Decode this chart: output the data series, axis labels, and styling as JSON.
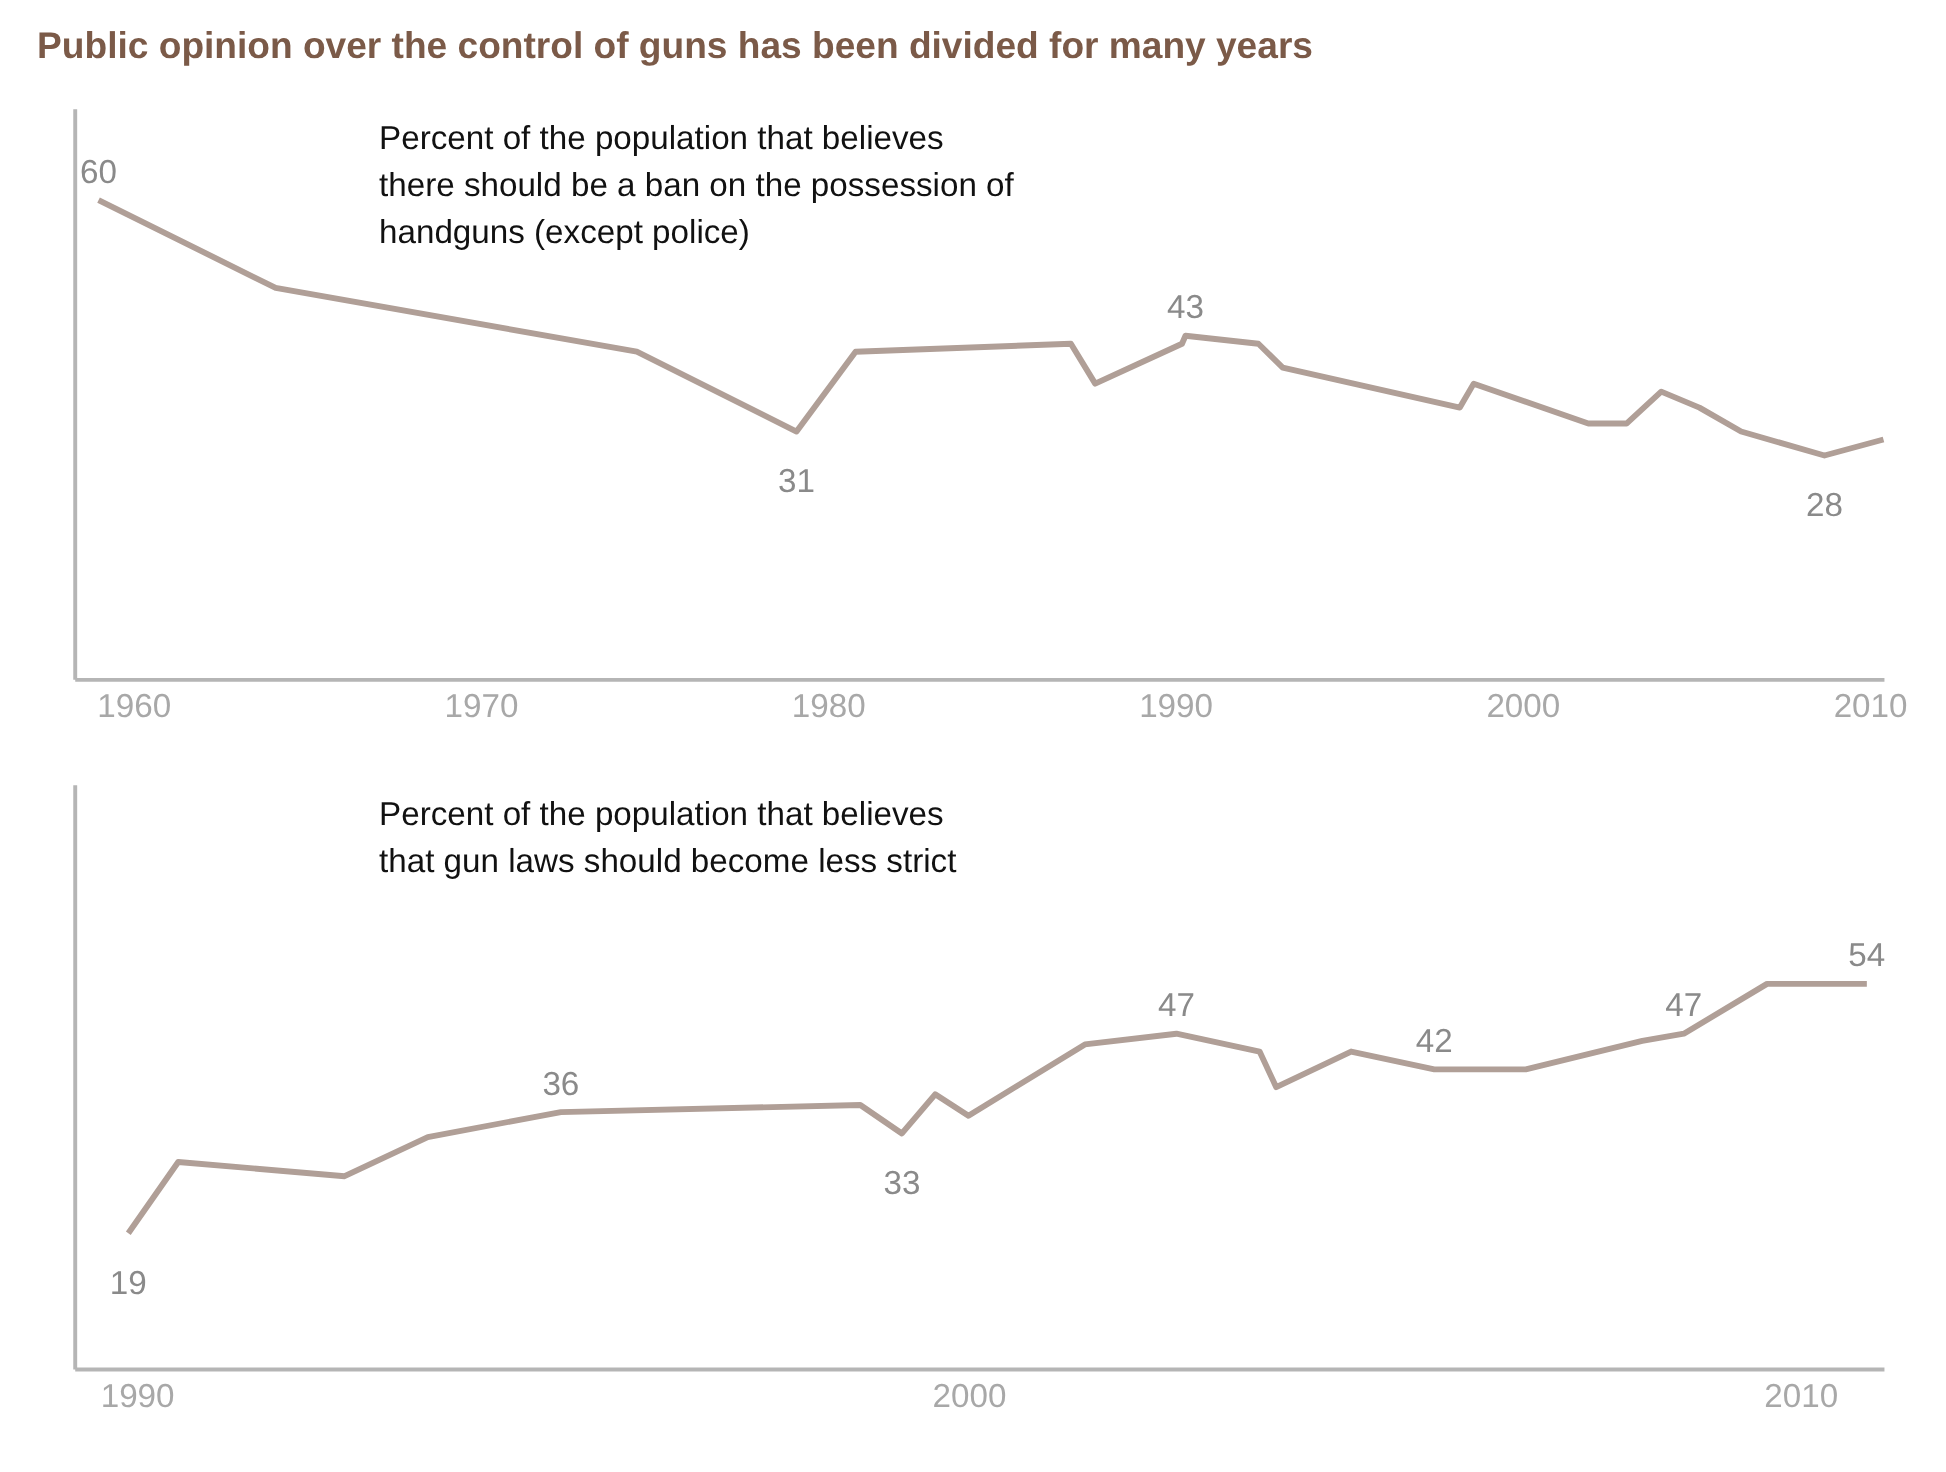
{
  "chart_data": [
    {
      "type": "line",
      "title": "Public opinion over the control of guns has been divided for many years",
      "annotations": [
        "Percent of the population that believes there should be a ban on the possession of handguns (except police)"
      ],
      "x": [
        1959,
        1964.1,
        1974.5,
        1979.1,
        1980.8,
        1987.0,
        1987.7,
        1990.2,
        1990.3,
        1992.4,
        1993.1,
        1998.2,
        1998.6,
        2001.9,
        2003.0,
        2004.0,
        2005.1,
        2006.3,
        2008.7,
        2010.4
      ],
      "series": [
        {
          "color": "#b09f97",
          "values": [
            60,
            49,
            41,
            31,
            41,
            42,
            37,
            42,
            43,
            42,
            39,
            34,
            37,
            32,
            32,
            36,
            34,
            31,
            28,
            30
          ],
          "value_labels": [
            "60",
            null,
            null,
            "31",
            null,
            null,
            null,
            null,
            "43",
            null,
            null,
            null,
            null,
            null,
            null,
            null,
            null,
            null,
            "28",
            null
          ]
        }
      ],
      "xlim": [
        1958.3,
        2010.4
      ],
      "xticks": [
        1960,
        1970,
        1980,
        1990,
        2000,
        2010
      ],
      "ylim": [
        0,
        71.5
      ],
      "tick_labels": "x",
      "grid": false
    },
    {
      "type": "line",
      "annotations": [
        "Percent of the population that believes that gun laws should become less strict"
      ],
      "x": [
        1989.9,
        1990.5,
        1992.5,
        1993.5,
        1995.1,
        1998.7,
        1999.2,
        1999.6,
        2000.0,
        2001.4,
        2002.5,
        2003.5,
        2003.7,
        2004.6,
        2005.6,
        2006.7,
        2008.1,
        2008.6,
        2009.6,
        2010.8
      ],
      "series": [
        {
          "color": "#b09f97",
          "values": [
            19,
            29,
            27,
            32.5,
            36,
            37,
            33,
            38.5,
            35.5,
            45.5,
            47,
            44.5,
            39.5,
            44.5,
            42,
            42,
            46,
            47,
            54,
            54
          ],
          "value_labels": [
            "19",
            null,
            null,
            null,
            "36",
            null,
            "33",
            null,
            null,
            null,
            "47",
            null,
            null,
            null,
            "42",
            null,
            null,
            "47",
            null,
            "54"
          ]
        }
      ],
      "xlim": [
        1989.25,
        2011
      ],
      "xticks": [
        1990,
        2000,
        2010
      ],
      "ylim": [
        0,
        82
      ],
      "tick_labels": "x",
      "grid": false
    }
  ]
}
